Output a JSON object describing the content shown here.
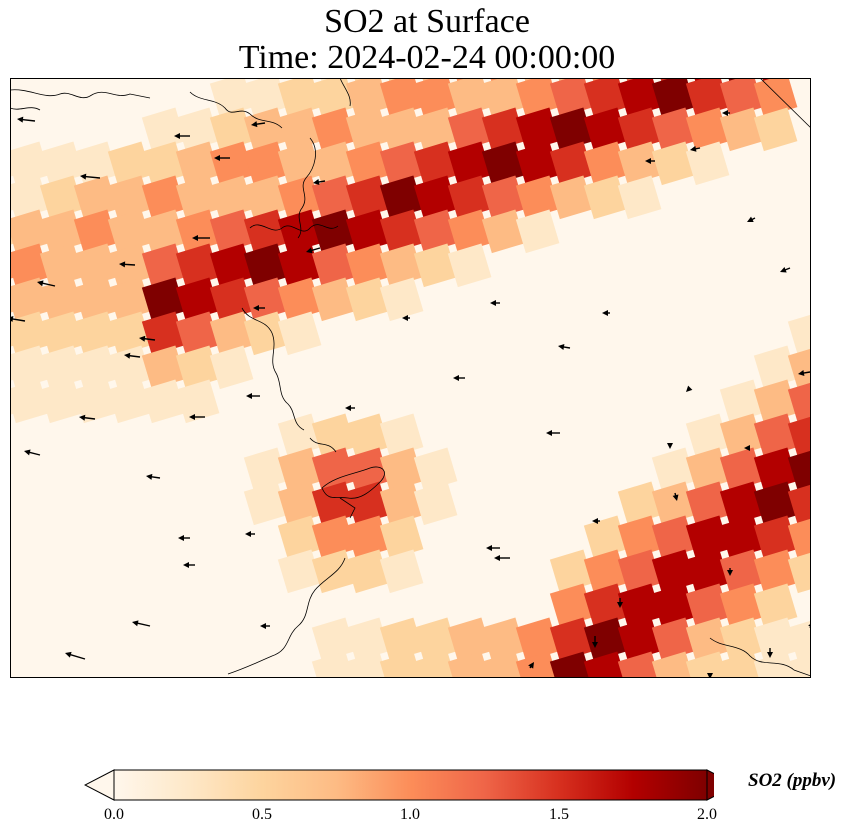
{
  "title": {
    "line1": "SO2 at Surface",
    "line2": "Time: 2024-02-24 00:00:00"
  },
  "colorbar": {
    "label": "SO2 (ppbv)",
    "ticks": [
      "0.0",
      "0.5",
      "1.0",
      "1.5",
      "2.0"
    ],
    "range": [
      0,
      2.0
    ],
    "extend": "both",
    "colormap": "OrRd",
    "colors": [
      "#fff7ec",
      "#fee8c8",
      "#fdd49e",
      "#fdbb84",
      "#fc8d59",
      "#ef6548",
      "#d7301f",
      "#b30000",
      "#7f0000"
    ]
  },
  "map": {
    "type": "filled-grid-with-wind-vectors",
    "coastlines": true,
    "wind_vectors": true
  }
}
